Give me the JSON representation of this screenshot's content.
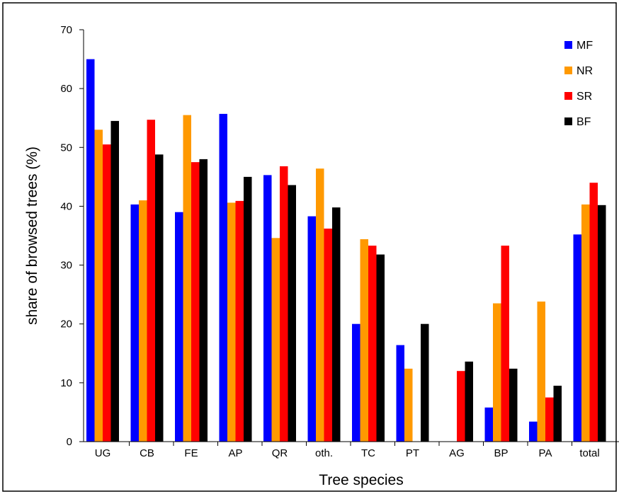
{
  "chart_data": {
    "type": "bar",
    "xlabel": "Tree species",
    "ylabel": "share of browsed trees (%)",
    "ylim": [
      0,
      70
    ],
    "yticks": [
      0,
      10,
      20,
      30,
      40,
      50,
      60,
      70
    ],
    "grid": false,
    "legend_position": "top-right",
    "categories": [
      "UG",
      "CB",
      "FE",
      "AP",
      "QR",
      "oth.",
      "TC",
      "PT",
      "AG",
      "BP",
      "PA",
      "total"
    ],
    "series": [
      {
        "name": "MF",
        "color": "#0000ff",
        "values": [
          65.0,
          40.3,
          39.0,
          55.7,
          45.3,
          38.3,
          20.0,
          16.4,
          0,
          5.8,
          3.4,
          35.2
        ]
      },
      {
        "name": "NR",
        "color": "#ff9900",
        "values": [
          53.0,
          41.0,
          55.5,
          40.6,
          34.6,
          46.4,
          34.4,
          12.4,
          0,
          23.5,
          23.8,
          40.3
        ]
      },
      {
        "name": "SR",
        "color": "#ff0000",
        "values": [
          50.5,
          54.7,
          47.5,
          40.9,
          46.8,
          36.2,
          33.3,
          0,
          12.0,
          33.3,
          7.5,
          44.0
        ]
      },
      {
        "name": "BF",
        "color": "#000000",
        "values": [
          54.5,
          48.8,
          48.0,
          45.0,
          43.6,
          39.8,
          31.8,
          20.0,
          13.6,
          12.4,
          9.5,
          40.2
        ]
      }
    ]
  }
}
